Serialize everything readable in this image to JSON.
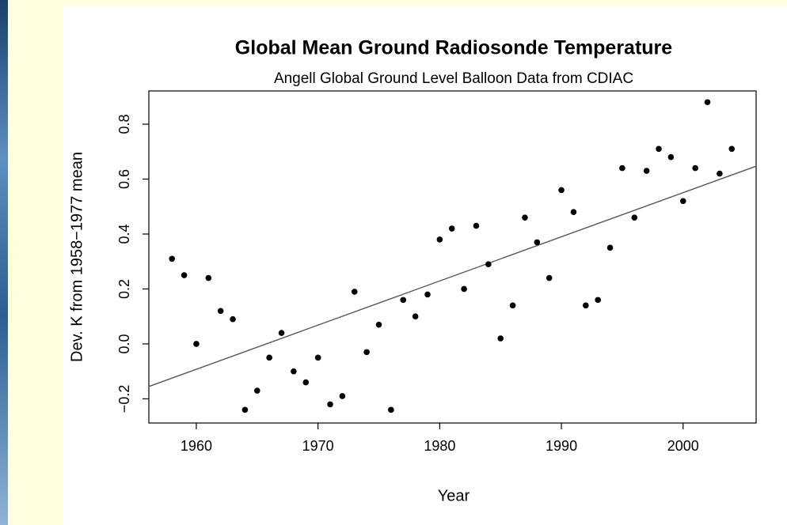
{
  "chart_data": {
    "type": "scatter",
    "title": "Global Mean Ground Radiosonde Temperature",
    "subtitle": "Angell Global Ground Level Balloon Data from CDIAC",
    "x_label": "Year",
    "y_label": "Dev. K from 1958−1977 mean",
    "x": [
      1958,
      1959,
      1960,
      1961,
      1962,
      1963,
      1964,
      1965,
      1966,
      1967,
      1968,
      1969,
      1970,
      1971,
      1972,
      1973,
      1974,
      1975,
      1976,
      1977,
      1978,
      1979,
      1980,
      1981,
      1982,
      1983,
      1984,
      1985,
      1986,
      1987,
      1988,
      1989,
      1990,
      1991,
      1992,
      1993,
      1994,
      1995,
      1996,
      1997,
      1998,
      1999,
      2000,
      2001,
      2002,
      2003,
      2004
    ],
    "values": [
      0.31,
      0.25,
      0.0,
      0.24,
      0.12,
      0.09,
      -0.24,
      -0.17,
      -0.05,
      0.04,
      -0.1,
      -0.14,
      -0.05,
      -0.22,
      -0.19,
      0.19,
      -0.03,
      0.07,
      -0.24,
      0.16,
      0.1,
      0.18,
      0.38,
      0.42,
      0.2,
      0.43,
      0.29,
      0.02,
      0.14,
      0.46,
      0.37,
      0.24,
      0.56,
      0.48,
      0.14,
      0.16,
      0.35,
      0.64,
      0.46,
      0.63,
      0.71,
      0.68,
      0.52,
      0.64,
      0.88,
      0.62,
      0.71
    ],
    "color": "#000000",
    "trend_line": {
      "x": [
        1956.1,
        2006.0
      ],
      "values": [
        -0.155,
        0.647
      ],
      "color": "#555555"
    },
    "xlim": [
      1956.1,
      2006.0
    ],
    "ylim": [
      -0.288,
      0.921
    ],
    "xticks": [
      1960,
      1970,
      1980,
      1990,
      2000
    ],
    "yticks": [
      {
        "value": -0.2,
        "label": "−0.2"
      },
      {
        "value": 0,
        "label": "0.0"
      },
      0.2,
      0.4,
      0.6,
      0.8
    ],
    "grid": false
  }
}
